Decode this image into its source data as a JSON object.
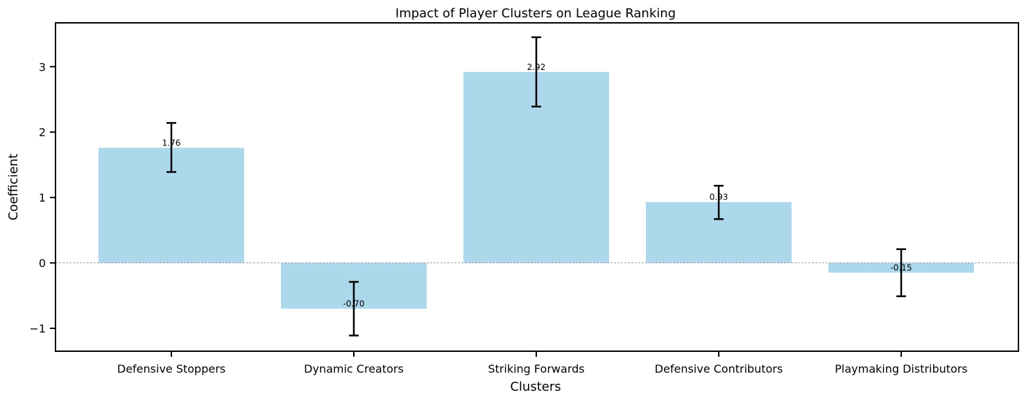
{
  "chart_data": {
    "type": "bar",
    "title": "Impact of Player Clusters on League Ranking",
    "xlabel": "Clusters",
    "ylabel": "Coefficient",
    "categories": [
      "Defensive Stoppers",
      "Dynamic Creators",
      "Striking Forwards",
      "Defensive Contributors",
      "Playmaking Distributors"
    ],
    "values": [
      1.76,
      -0.7,
      2.92,
      0.93,
      -0.15
    ],
    "data_labels": [
      "1.76",
      "-0.70",
      "2.92",
      "0.93",
      "-0.15"
    ],
    "error_low": [
      1.39,
      -1.11,
      2.39,
      0.67,
      -0.51
    ],
    "error_high": [
      2.14,
      -0.29,
      3.45,
      1.18,
      0.21
    ],
    "ylim": [
      -1.35,
      3.67
    ],
    "yticks": [
      -1,
      0,
      1,
      2,
      3
    ],
    "ytick_labels": [
      "−1",
      "0",
      "1",
      "2",
      "3"
    ],
    "zero_line": true,
    "grid": false,
    "colors": {
      "bar": "#add8ec",
      "error": "#000000",
      "zero_line": "#808080"
    }
  }
}
